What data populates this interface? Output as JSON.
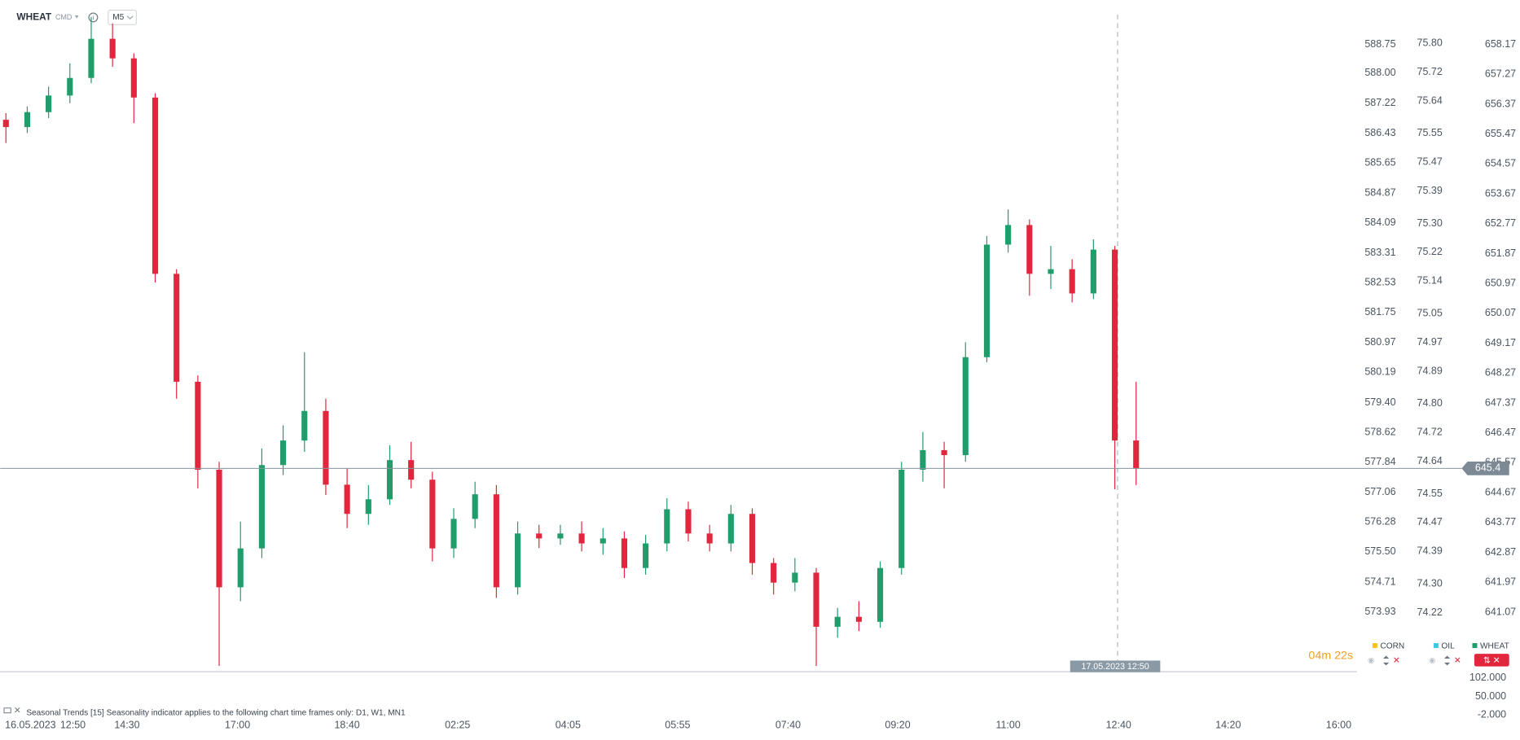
{
  "header": {
    "symbol": "WHEAT",
    "market": "CMD",
    "timeframe": "M5"
  },
  "chart_data": {
    "type": "candlestick",
    "up_color": "#1f9d6b",
    "down_color": "#e2263d",
    "open": [
      655.9,
      655.68,
      656.13,
      656.63,
      657.16,
      658.34,
      657.75,
      656.57,
      651.26,
      648.01,
      645.36,
      641.82,
      642.99,
      645.5,
      646.24,
      647.13,
      644.91,
      644.03,
      644.47,
      645.65,
      645.06,
      642.99,
      643.88,
      644.62,
      641.82,
      643.44,
      643.29,
      643.44,
      643.14,
      643.29,
      642.4,
      643.14,
      644.17,
      643.44,
      643.14,
      644.03,
      642.55,
      641.96,
      642.26,
      640.63,
      640.93,
      640.78,
      642.4,
      645.36,
      645.95,
      645.8,
      648.75,
      652.14,
      652.73,
      651.26,
      651.4,
      650.67,
      651.99,
      646.24
    ],
    "high": [
      656.1,
      656.3,
      656.9,
      657.6,
      659.0,
      658.8,
      657.9,
      656.7,
      651.4,
      648.2,
      645.6,
      643.8,
      646.0,
      646.7,
      648.9,
      647.5,
      645.4,
      644.9,
      646.1,
      646.2,
      645.3,
      644.2,
      645.0,
      644.9,
      643.8,
      643.7,
      643.7,
      643.8,
      643.6,
      643.5,
      643.4,
      644.5,
      644.4,
      643.7,
      644.3,
      644.2,
      642.7,
      642.7,
      642.4,
      641.2,
      641.4,
      642.6,
      645.6,
      646.5,
      646.2,
      649.2,
      652.4,
      653.2,
      652.9,
      652.1,
      651.7,
      652.3,
      652.1,
      648.01
    ],
    "low": [
      655.2,
      655.5,
      655.95,
      656.4,
      657.0,
      657.5,
      655.8,
      651.0,
      647.5,
      644.8,
      639.45,
      641.4,
      642.7,
      645.2,
      645.9,
      644.6,
      643.6,
      643.7,
      644.3,
      644.8,
      642.6,
      642.7,
      643.6,
      641.5,
      641.6,
      643.0,
      643.1,
      642.9,
      642.8,
      642.1,
      642.2,
      642.9,
      643.2,
      642.9,
      642.9,
      642.2,
      641.6,
      641.7,
      639.45,
      640.3,
      640.5,
      640.6,
      642.2,
      645.0,
      644.8,
      645.6,
      648.6,
      651.9,
      650.6,
      650.8,
      650.4,
      650.5,
      644.77,
      644.9
    ],
    "close": [
      655.68,
      656.13,
      656.63,
      657.16,
      658.34,
      657.75,
      656.57,
      651.26,
      648.01,
      645.36,
      641.82,
      642.99,
      645.5,
      646.24,
      647.13,
      644.91,
      644.03,
      644.47,
      645.65,
      645.06,
      642.99,
      643.88,
      644.62,
      641.82,
      643.44,
      643.29,
      643.44,
      643.14,
      643.29,
      642.4,
      643.14,
      644.17,
      643.44,
      643.14,
      644.03,
      642.55,
      641.96,
      642.26,
      640.63,
      640.93,
      640.78,
      642.4,
      645.36,
      645.95,
      645.8,
      648.75,
      652.14,
      652.73,
      651.26,
      651.4,
      650.67,
      651.99,
      646.24,
      645.4
    ],
    "ylim": [
      639.32,
      659.07
    ],
    "yticks": [
      658.17,
      657.27,
      656.37,
      655.47,
      654.57,
      653.67,
      652.77,
      651.87,
      650.97,
      650.07,
      649.17,
      648.27,
      647.37,
      646.47,
      645.57,
      644.67,
      643.77,
      642.87,
      641.97,
      641.07
    ],
    "axes": [
      {
        "lim": [
          572.41,
          589.53
        ],
        "ticks": [
          588.75,
          {
            "value": 588.0,
            "label": "588.00"
          },
          587.22,
          586.43,
          585.65,
          584.87,
          584.09,
          583.31,
          582.53,
          581.75,
          580.97,
          580.19,
          {
            "value": 579.4,
            "label": "579.40"
          },
          578.62,
          577.84,
          577.06,
          576.28,
          {
            "value": 575.5,
            "label": "575.50"
          },
          574.71,
          573.93
        ]
      },
      {
        "lim": [
          74.06,
          75.88
        ],
        "ticks": [
          {
            "value": 75.8,
            "label": "75.80"
          },
          75.72,
          75.64,
          75.55,
          75.47,
          75.39,
          {
            "value": 75.3,
            "label": "75.30"
          },
          75.22,
          75.14,
          75.05,
          74.97,
          74.89,
          {
            "value": 74.8,
            "label": "74.80"
          },
          74.72,
          74.64,
          74.55,
          74.47,
          74.39,
          {
            "value": 74.3,
            "label": "74.30"
          },
          74.22
        ]
      }
    ],
    "xlim": [
      -0.27,
      63.36
    ],
    "xticks": [
      {
        "value": 3.14,
        "label": "12:50"
      },
      {
        "value": 5.68,
        "label": "14:30"
      },
      {
        "value": 10.86,
        "label": "17:00"
      },
      {
        "value": 16,
        "label": "18:40"
      },
      {
        "value": 21.18,
        "label": "02:25"
      },
      {
        "value": 26.36,
        "label": "04:05"
      },
      {
        "value": 31.5,
        "label": "05:55"
      },
      {
        "value": 36.68,
        "label": "07:40"
      },
      {
        "value": 41.82,
        "label": "09:20"
      },
      {
        "value": 47,
        "label": "11:00"
      },
      {
        "value": 52.18,
        "label": "12:40"
      },
      {
        "value": 57.32,
        "label": "14:20"
      },
      {
        "value": 62.5,
        "label": "16:00"
      }
    ],
    "date_label": "16.05.2023",
    "crosshair_label": "17.05.2023 12:50",
    "timer": "04m 22s",
    "legend": [
      {
        "name": "CORN",
        "color": "#f5c518"
      },
      {
        "name": "OIL",
        "color": "#3ec6e0"
      },
      {
        "name": "WHEAT",
        "color": "#1f9d6b"
      }
    ]
  },
  "indicator": {
    "text": "Seasonal Trends [15] Seasonality indicator applies to the following chart time frames only: D1, W1, MN1",
    "ylim": [
      -2,
      102
    ],
    "yticks": [
      {
        "value": 102,
        "label": "102.000"
      },
      {
        "value": 50,
        "label": "50.000"
      },
      {
        "value": -2,
        "label": "-2.000"
      }
    ]
  }
}
